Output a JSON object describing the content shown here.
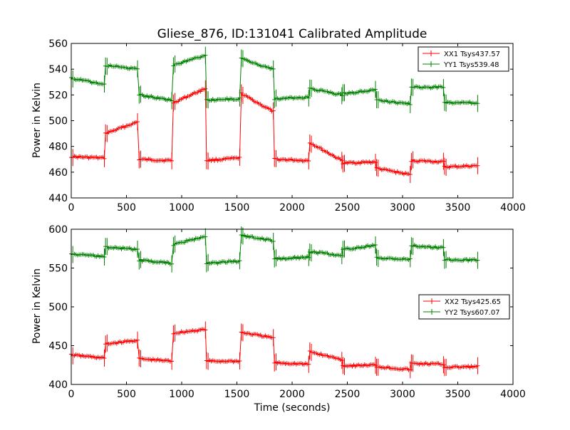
{
  "chart_data": [
    {
      "type": "line",
      "title": "Gliese_876, ID:131041 Calibrated Amplitude",
      "xlabel": "",
      "ylabel": "Power in Kelvin",
      "xlim": [
        0,
        4000
      ],
      "ylim": [
        440,
        560
      ],
      "xticks": [
        0,
        500,
        1000,
        1500,
        2000,
        2500,
        3000,
        3500,
        4000
      ],
      "yticks": [
        440,
        460,
        480,
        500,
        520,
        540,
        560
      ],
      "legend_position": "top-right",
      "series": [
        {
          "name": "XX1 Tsys437.57",
          "color": "#ff0000",
          "segments": [
            {
              "x": [
                0,
                300
              ],
              "y": [
                472,
                471
              ]
            },
            {
              "x": [
                310,
                600
              ],
              "y": [
                490,
                499
              ]
            },
            {
              "x": [
                615,
                910
              ],
              "y": [
                470,
                469
              ]
            },
            {
              "x": [
                925,
                1215
              ],
              "y": [
                514,
                525
              ]
            },
            {
              "x": [
                1225,
                1525
              ],
              "y": [
                469,
                471
              ]
            },
            {
              "x": [
                1540,
                1830
              ],
              "y": [
                521,
                507
              ]
            },
            {
              "x": [
                1840,
                2150
              ],
              "y": [
                470,
                469
              ]
            },
            {
              "x": [
                2160,
                2450
              ],
              "y": [
                483,
                469
              ]
            },
            {
              "x": [
                2460,
                2755
              ],
              "y": [
                467,
                468
              ]
            },
            {
              "x": [
                2765,
                3070
              ],
              "y": [
                463,
                458
              ]
            },
            {
              "x": [
                3080,
                3370
              ],
              "y": [
                469,
                468
              ]
            },
            {
              "x": [
                3380,
                3680
              ],
              "y": [
                464,
                465
              ]
            }
          ]
        },
        {
          "name": "YY1 Tsys539.48",
          "color": "#008000",
          "segments": [
            {
              "x": [
                0,
                300
              ],
              "y": [
                533,
                528
              ]
            },
            {
              "x": [
                310,
                600
              ],
              "y": [
                543,
                540
              ]
            },
            {
              "x": [
                615,
                910
              ],
              "y": [
                520,
                516
              ]
            },
            {
              "x": [
                925,
                1215
              ],
              "y": [
                543,
                551
              ]
            },
            {
              "x": [
                1225,
                1525
              ],
              "y": [
                516,
                517
              ]
            },
            {
              "x": [
                1540,
                1830
              ],
              "y": [
                548,
                540
              ]
            },
            {
              "x": [
                1840,
                2150
              ],
              "y": [
                517,
                518
              ]
            },
            {
              "x": [
                2160,
                2450
              ],
              "y": [
                525,
                520
              ]
            },
            {
              "x": [
                2460,
                2755
              ],
              "y": [
                521,
                524
              ]
            },
            {
              "x": [
                2765,
                3070
              ],
              "y": [
                516,
                513
              ]
            },
            {
              "x": [
                3080,
                3370
              ],
              "y": [
                526,
                526
              ]
            },
            {
              "x": [
                3380,
                3680
              ],
              "y": [
                514,
                514
              ]
            }
          ]
        }
      ]
    },
    {
      "type": "line",
      "title": "",
      "xlabel": "Time (seconds)",
      "ylabel": "Power in Kelvin",
      "xlim": [
        0,
        4000
      ],
      "ylim": [
        400,
        600
      ],
      "xticks": [
        0,
        500,
        1000,
        1500,
        2000,
        2500,
        3000,
        3500,
        4000
      ],
      "yticks": [
        400,
        450,
        500,
        550,
        600
      ],
      "legend_position": "center-right",
      "series": [
        {
          "name": "XX2 Tsys425.65",
          "color": "#ff0000",
          "segments": [
            {
              "x": [
                0,
                300
              ],
              "y": [
                438,
                434
              ]
            },
            {
              "x": [
                310,
                600
              ],
              "y": [
                452,
                457
              ]
            },
            {
              "x": [
                615,
                910
              ],
              "y": [
                433,
                430
              ]
            },
            {
              "x": [
                925,
                1215
              ],
              "y": [
                466,
                471
              ]
            },
            {
              "x": [
                1225,
                1525
              ],
              "y": [
                430,
                430
              ]
            },
            {
              "x": [
                1540,
                1830
              ],
              "y": [
                467,
                460
              ]
            },
            {
              "x": [
                1840,
                2150
              ],
              "y": [
                428,
                426
              ]
            },
            {
              "x": [
                2160,
                2450
              ],
              "y": [
                442,
                432
              ]
            },
            {
              "x": [
                2460,
                2755
              ],
              "y": [
                424,
                425
              ]
            },
            {
              "x": [
                2765,
                3070
              ],
              "y": [
                423,
                419
              ]
            },
            {
              "x": [
                3080,
                3370
              ],
              "y": [
                427,
                426
              ]
            },
            {
              "x": [
                3380,
                3680
              ],
              "y": [
                422,
                423
              ]
            }
          ]
        },
        {
          "name": "YY2 Tsys607.07",
          "color": "#008000",
          "segments": [
            {
              "x": [
                0,
                300
              ],
              "y": [
                568,
                565
              ]
            },
            {
              "x": [
                310,
                600
              ],
              "y": [
                577,
                574
              ]
            },
            {
              "x": [
                615,
                910
              ],
              "y": [
                560,
                556
              ]
            },
            {
              "x": [
                925,
                1215
              ],
              "y": [
                580,
                591
              ]
            },
            {
              "x": [
                1225,
                1525
              ],
              "y": [
                556,
                559
              ]
            },
            {
              "x": [
                1540,
                1830
              ],
              "y": [
                592,
                585
              ]
            },
            {
              "x": [
                1840,
                2150
              ],
              "y": [
                562,
                564
              ]
            },
            {
              "x": [
                2160,
                2450
              ],
              "y": [
                571,
                566
              ]
            },
            {
              "x": [
                2460,
                2755
              ],
              "y": [
                574,
                579
              ]
            },
            {
              "x": [
                2765,
                3070
              ],
              "y": [
                563,
                561
              ]
            },
            {
              "x": [
                3080,
                3370
              ],
              "y": [
                579,
                576
              ]
            },
            {
              "x": [
                3380,
                3680
              ],
              "y": [
                561,
                560
              ]
            }
          ]
        }
      ]
    }
  ]
}
